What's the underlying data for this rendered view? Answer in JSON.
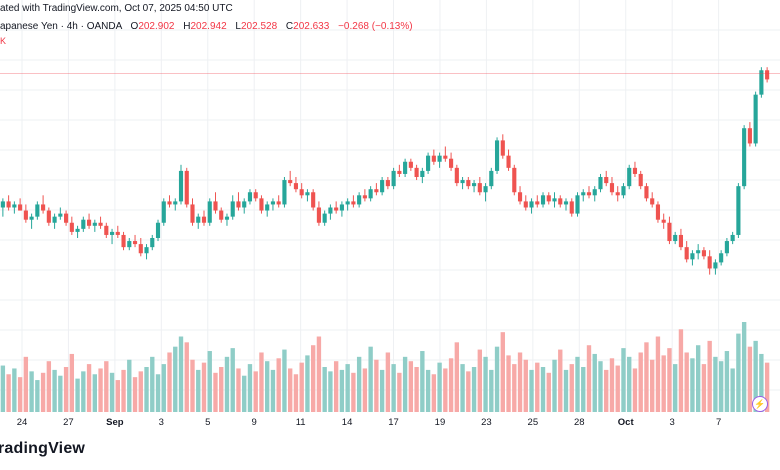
{
  "header": {
    "published_text": "ated with TradingView.com, Oct 07, 2025 04:50 UTC"
  },
  "legend": {
    "symbol": "apanese Yen · 4h · OANDA",
    "open_label": "O",
    "open_value": "202.902",
    "high_label": "H",
    "high_value": "202.942",
    "low_label": "L",
    "low_value": "202.528",
    "close_label": "C",
    "close_value": "202.633",
    "change": "−0.268 (−0.13%)",
    "volume": "K"
  },
  "brand": "radingView",
  "bolt_icon": "⚡",
  "colors": {
    "up": "#26a69a",
    "down": "#ef5350",
    "vol_up": "#8fcdc7",
    "vol_down": "#f7a9a7",
    "grid": "#eef0f3",
    "price_line": "#f23645"
  },
  "chart_data": {
    "type": "candlestick",
    "title": "Japanese Yen · 4h · OANDA",
    "x_ticks": [
      "24",
      "27",
      "Sep",
      "3",
      "5",
      "9",
      "11",
      "14",
      "17",
      "19",
      "23",
      "25",
      "28",
      "Oct",
      "3",
      "7"
    ],
    "y_range": [
      0,
      100
    ],
    "last_price_level": 94,
    "candles": [
      [
        50,
        53,
        47,
        52
      ],
      [
        52,
        54,
        49,
        50
      ],
      [
        50,
        52,
        48,
        51
      ],
      [
        51,
        53,
        49,
        49
      ],
      [
        49,
        51,
        45,
        46
      ],
      [
        46,
        48,
        43,
        47
      ],
      [
        47,
        52,
        46,
        51
      ],
      [
        51,
        54,
        48,
        49
      ],
      [
        49,
        50,
        44,
        45
      ],
      [
        45,
        48,
        43,
        47
      ],
      [
        47,
        50,
        46,
        48
      ],
      [
        48,
        49,
        44,
        45
      ],
      [
        45,
        47,
        41,
        42
      ],
      [
        42,
        44,
        40,
        43
      ],
      [
        43,
        47,
        42,
        46
      ],
      [
        46,
        48,
        43,
        44
      ],
      [
        44,
        46,
        42,
        45
      ],
      [
        45,
        47,
        43,
        44
      ],
      [
        44,
        45,
        40,
        41
      ],
      [
        41,
        43,
        38,
        42
      ],
      [
        42,
        44,
        40,
        41
      ],
      [
        41,
        42,
        36,
        37
      ],
      [
        37,
        40,
        36,
        39
      ],
      [
        39,
        41,
        37,
        38
      ],
      [
        38,
        40,
        34,
        35
      ],
      [
        35,
        38,
        33,
        37
      ],
      [
        37,
        41,
        36,
        40
      ],
      [
        40,
        46,
        39,
        45
      ],
      [
        45,
        53,
        44,
        52
      ],
      [
        52,
        54,
        50,
        51
      ],
      [
        51,
        53,
        49,
        52
      ],
      [
        52,
        64,
        51,
        62
      ],
      [
        62,
        63,
        50,
        51
      ],
      [
        51,
        53,
        44,
        45
      ],
      [
        45,
        48,
        43,
        47
      ],
      [
        47,
        49,
        44,
        45
      ],
      [
        45,
        53,
        44,
        52
      ],
      [
        52,
        55,
        48,
        49
      ],
      [
        49,
        50,
        45,
        46
      ],
      [
        46,
        48,
        44,
        47
      ],
      [
        47,
        54,
        46,
        52
      ],
      [
        52,
        55,
        49,
        50
      ],
      [
        50,
        53,
        48,
        52
      ],
      [
        52,
        56,
        51,
        55
      ],
      [
        55,
        56,
        52,
        53
      ],
      [
        53,
        54,
        48,
        49
      ],
      [
        49,
        52,
        47,
        51
      ],
      [
        51,
        53,
        49,
        52
      ],
      [
        52,
        54,
        50,
        51
      ],
      [
        51,
        60,
        50,
        59
      ],
      [
        59,
        62,
        57,
        58
      ],
      [
        58,
        60,
        55,
        56
      ],
      [
        56,
        58,
        53,
        54
      ],
      [
        54,
        56,
        52,
        55
      ],
      [
        55,
        56,
        49,
        50
      ],
      [
        50,
        52,
        44,
        45
      ],
      [
        45,
        49,
        44,
        48
      ],
      [
        48,
        51,
        46,
        50
      ],
      [
        50,
        52,
        48,
        49
      ],
      [
        49,
        52,
        47,
        51
      ],
      [
        51,
        53,
        49,
        52
      ],
      [
        52,
        54,
        50,
        51
      ],
      [
        51,
        55,
        50,
        54
      ],
      [
        54,
        56,
        52,
        53
      ],
      [
        53,
        57,
        52,
        56
      ],
      [
        56,
        58,
        54,
        55
      ],
      [
        55,
        60,
        54,
        59
      ],
      [
        59,
        60,
        56,
        57
      ],
      [
        57,
        63,
        56,
        62
      ],
      [
        62,
        64,
        60,
        61
      ],
      [
        61,
        66,
        60,
        65
      ],
      [
        65,
        66,
        62,
        63
      ],
      [
        63,
        64,
        59,
        60
      ],
      [
        60,
        63,
        58,
        62
      ],
      [
        62,
        68,
        61,
        67
      ],
      [
        67,
        69,
        64,
        65
      ],
      [
        65,
        68,
        63,
        67
      ],
      [
        67,
        70,
        65,
        66
      ],
      [
        66,
        68,
        62,
        63
      ],
      [
        63,
        64,
        57,
        58
      ],
      [
        58,
        60,
        56,
        59
      ],
      [
        59,
        60,
        56,
        57
      ],
      [
        57,
        59,
        55,
        58
      ],
      [
        58,
        60,
        54,
        55
      ],
      [
        55,
        58,
        52,
        57
      ],
      [
        57,
        63,
        56,
        62
      ],
      [
        62,
        73,
        61,
        72
      ],
      [
        72,
        74,
        66,
        67
      ],
      [
        67,
        69,
        62,
        63
      ],
      [
        63,
        64,
        54,
        55
      ],
      [
        55,
        57,
        51,
        52
      ],
      [
        52,
        54,
        49,
        50
      ],
      [
        50,
        53,
        48,
        52
      ],
      [
        52,
        54,
        50,
        51
      ],
      [
        51,
        55,
        50,
        54
      ],
      [
        54,
        55,
        51,
        52
      ],
      [
        52,
        55,
        50,
        53
      ],
      [
        53,
        54,
        50,
        51
      ],
      [
        51,
        53,
        49,
        52
      ],
      [
        52,
        53,
        47,
        48
      ],
      [
        48,
        55,
        47,
        54
      ],
      [
        54,
        56,
        52,
        55
      ],
      [
        55,
        57,
        53,
        54
      ],
      [
        54,
        57,
        52,
        56
      ],
      [
        56,
        61,
        55,
        60
      ],
      [
        60,
        62,
        57,
        58
      ],
      [
        58,
        60,
        54,
        55
      ],
      [
        55,
        57,
        52,
        54
      ],
      [
        54,
        58,
        53,
        57
      ],
      [
        57,
        64,
        56,
        63
      ],
      [
        63,
        65,
        60,
        61
      ],
      [
        61,
        62,
        56,
        57
      ],
      [
        57,
        58,
        52,
        53
      ],
      [
        53,
        55,
        50,
        51
      ],
      [
        51,
        52,
        45,
        46
      ],
      [
        46,
        48,
        43,
        45
      ],
      [
        45,
        47,
        38,
        39
      ],
      [
        39,
        42,
        38,
        41
      ],
      [
        41,
        43,
        36,
        37
      ],
      [
        37,
        39,
        32,
        33
      ],
      [
        33,
        36,
        31,
        35
      ],
      [
        35,
        38,
        33,
        36
      ],
      [
        36,
        37,
        33,
        34
      ],
      [
        34,
        36,
        28,
        30
      ],
      [
        30,
        33,
        28,
        32
      ],
      [
        32,
        36,
        31,
        35
      ],
      [
        35,
        40,
        34,
        39
      ],
      [
        39,
        42,
        38,
        41
      ],
      [
        41,
        58,
        40,
        57
      ],
      [
        57,
        77,
        56,
        76
      ],
      [
        76,
        78,
        70,
        71
      ],
      [
        71,
        88,
        70,
        87
      ],
      [
        87,
        96,
        86,
        95
      ],
      [
        95,
        96,
        91,
        92
      ]
    ],
    "volumes": [
      32,
      26,
      30,
      24,
      38,
      28,
      22,
      27,
      35,
      29,
      25,
      31,
      40,
      23,
      28,
      33,
      26,
      30,
      35,
      27,
      22,
      29,
      36,
      24,
      28,
      31,
      38,
      26,
      33,
      41,
      45,
      52,
      48,
      36,
      29,
      34,
      42,
      27,
      31,
      38,
      44,
      30,
      25,
      33,
      28,
      41,
      35,
      29,
      37,
      43,
      30,
      26,
      34,
      39,
      46,
      52,
      31,
      28,
      35,
      29,
      33,
      27,
      38,
      30,
      45,
      36,
      29,
      41,
      33,
      27,
      38,
      35,
      31,
      42,
      29,
      26,
      34,
      30,
      37,
      48,
      33,
      28,
      31,
      43,
      38,
      29,
      45,
      55,
      39,
      33,
      41,
      36,
      29,
      34,
      31,
      27,
      36,
      43,
      29,
      33,
      38,
      31,
      46,
      40,
      35,
      29,
      37,
      32,
      44,
      38,
      30,
      41,
      48,
      36,
      52,
      39,
      44,
      33,
      57,
      41,
      37,
      46,
      33,
      49,
      38,
      35,
      42,
      30,
      54,
      62,
      45,
      49,
      40,
      34
    ]
  }
}
